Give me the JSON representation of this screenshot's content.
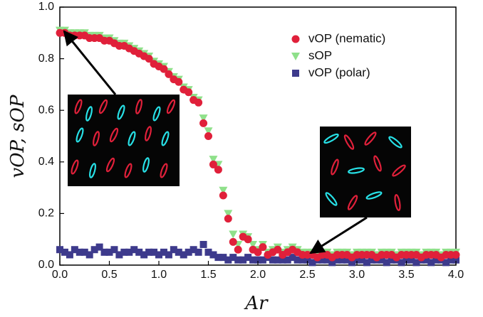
{
  "chart_data": {
    "type": "scatter",
    "xlabel": "Ar",
    "ylabel": "vOP, sOP",
    "xlim": [
      0,
      4
    ],
    "ylim": [
      0,
      1
    ],
    "xticks": [
      {
        "value": 0,
        "label": "0.0"
      },
      {
        "value": 0.5,
        "label": "0.5"
      },
      {
        "value": 1,
        "label": "1.0"
      },
      {
        "value": 1.5,
        "label": "1.5"
      },
      {
        "value": 2,
        "label": "2.0"
      },
      {
        "value": 2.5,
        "label": "2.5"
      },
      {
        "value": 3,
        "label": "3.0"
      },
      {
        "value": 3.5,
        "label": "3.5"
      },
      {
        "value": 4,
        "label": "4.0"
      }
    ],
    "yticks": [
      {
        "value": 0,
        "label": "0.0"
      },
      {
        "value": 0.2,
        "label": "0.2"
      },
      {
        "value": 0.4,
        "label": "0.4"
      },
      {
        "value": 0.6,
        "label": "0.6"
      },
      {
        "value": 0.8,
        "label": "0.8"
      },
      {
        "value": 1,
        "label": "1.0"
      }
    ],
    "legend": "upper right",
    "x": [
      0,
      0.05,
      0.1,
      0.15,
      0.2,
      0.25,
      0.3,
      0.35,
      0.4,
      0.45,
      0.5,
      0.55,
      0.6,
      0.65,
      0.7,
      0.75,
      0.8,
      0.85,
      0.9,
      0.95,
      1,
      1.05,
      1.1,
      1.15,
      1.2,
      1.25,
      1.3,
      1.35,
      1.4,
      1.45,
      1.5,
      1.55,
      1.6,
      1.65,
      1.7,
      1.75,
      1.8,
      1.85,
      1.9,
      1.95,
      2,
      2.05,
      2.1,
      2.15,
      2.2,
      2.25,
      2.3,
      2.35,
      2.4,
      2.45,
      2.5,
      2.55,
      2.6,
      2.65,
      2.7,
      2.75,
      2.8,
      2.85,
      2.9,
      2.95,
      3,
      3.05,
      3.1,
      3.15,
      3.2,
      3.25,
      3.3,
      3.35,
      3.4,
      3.45,
      3.5,
      3.55,
      3.6,
      3.65,
      3.7,
      3.75,
      3.8,
      3.85,
      3.9,
      3.95,
      4
    ],
    "series": [
      {
        "name": "vOP (nematic)",
        "color": "#e0203a",
        "marker": "circle",
        "values": [
          0.9,
          0.9,
          0.89,
          0.89,
          0.89,
          0.89,
          0.88,
          0.88,
          0.88,
          0.87,
          0.87,
          0.86,
          0.85,
          0.85,
          0.84,
          0.83,
          0.82,
          0.81,
          0.8,
          0.78,
          0.77,
          0.76,
          0.74,
          0.72,
          0.71,
          0.68,
          0.67,
          0.64,
          0.63,
          0.55,
          0.5,
          0.39,
          0.37,
          0.27,
          0.18,
          0.09,
          0.06,
          0.11,
          0.1,
          0.06,
          0.05,
          0.07,
          0.04,
          0.05,
          0.06,
          0.04,
          0.05,
          0.06,
          0.05,
          0.04,
          0.04,
          0.04,
          0.03,
          0.04,
          0.04,
          0.03,
          0.04,
          0.04,
          0.04,
          0.03,
          0.04,
          0.04,
          0.04,
          0.04,
          0.03,
          0.04,
          0.04,
          0.04,
          0.03,
          0.04,
          0.04,
          0.04,
          0.04,
          0.03,
          0.04,
          0.04,
          0.04,
          0.03,
          0.04,
          0.04,
          0.04
        ]
      },
      {
        "name": "sOP",
        "color": "#8fe08a",
        "marker": "triangle",
        "values": [
          0.91,
          0.91,
          0.9,
          0.9,
          0.9,
          0.9,
          0.89,
          0.89,
          0.89,
          0.88,
          0.88,
          0.87,
          0.86,
          0.86,
          0.85,
          0.84,
          0.83,
          0.82,
          0.81,
          0.79,
          0.78,
          0.77,
          0.75,
          0.73,
          0.72,
          0.69,
          0.68,
          0.65,
          0.64,
          0.57,
          0.52,
          0.41,
          0.39,
          0.29,
          0.2,
          0.12,
          0.08,
          0.12,
          0.11,
          0.08,
          0.06,
          0.08,
          0.05,
          0.06,
          0.07,
          0.05,
          0.06,
          0.07,
          0.06,
          0.05,
          0.05,
          0.05,
          0.04,
          0.05,
          0.05,
          0.04,
          0.05,
          0.05,
          0.05,
          0.04,
          0.05,
          0.05,
          0.05,
          0.05,
          0.04,
          0.05,
          0.05,
          0.05,
          0.04,
          0.05,
          0.05,
          0.05,
          0.05,
          0.04,
          0.05,
          0.05,
          0.05,
          0.04,
          0.05,
          0.05,
          0.05
        ]
      },
      {
        "name": "vOP (polar)",
        "color": "#3d3a8c",
        "marker": "square",
        "values": [
          0.06,
          0.05,
          0.04,
          0.06,
          0.05,
          0.05,
          0.04,
          0.06,
          0.07,
          0.05,
          0.05,
          0.06,
          0.04,
          0.05,
          0.05,
          0.06,
          0.05,
          0.04,
          0.05,
          0.05,
          0.04,
          0.05,
          0.04,
          0.06,
          0.05,
          0.04,
          0.05,
          0.06,
          0.05,
          0.08,
          0.05,
          0.04,
          0.03,
          0.03,
          0.02,
          0.03,
          0.02,
          0.02,
          0.03,
          0.02,
          0.02,
          0.02,
          0.03,
          0.02,
          0.02,
          0.02,
          0.02,
          0.03,
          0.02,
          0.02,
          0.02,
          0.01,
          0.02,
          0.02,
          0.02,
          0.01,
          0.02,
          0.02,
          0.02,
          0.01,
          0.02,
          0.02,
          0.01,
          0.02,
          0.02,
          0.02,
          0.01,
          0.02,
          0.02,
          0.01,
          0.02,
          0.02,
          0.01,
          0.02,
          0.02,
          0.01,
          0.02,
          0.02,
          0.01,
          0.02,
          0.02
        ]
      }
    ]
  }
}
